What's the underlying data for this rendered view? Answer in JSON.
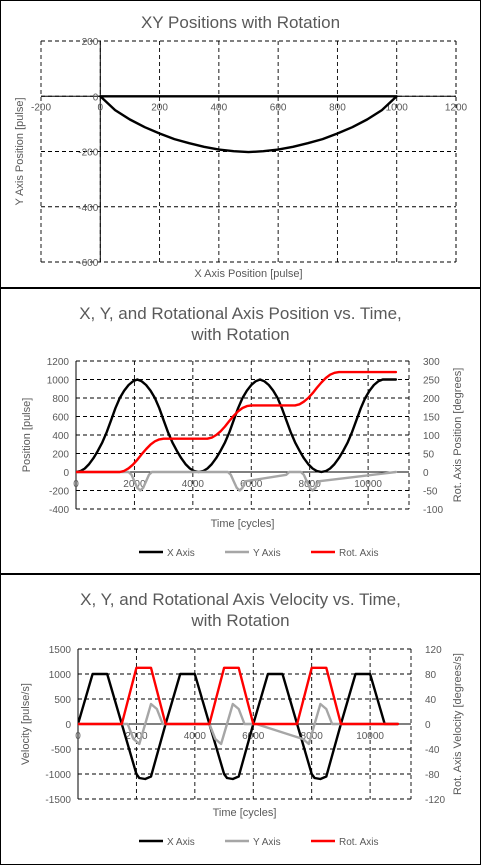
{
  "charts": [
    {
      "title_lines": [
        "XY Positions with Rotation"
      ],
      "xlabel": "X Axis Position [pulse]",
      "ylabel": "Y Axis Position [pulse]",
      "legend": []
    },
    {
      "title_lines": [
        "X, Y, and Rotational Axis Position vs. Time,",
        "with Rotation"
      ],
      "xlabel": "Time [cycles]",
      "ylabel": "Position [pulse]",
      "y2label": "Rot. Axis Position [degrees]",
      "legend": [
        "X Axis",
        "Y Axis",
        "Rot. Axis"
      ]
    },
    {
      "title_lines": [
        "X, Y, and Rotational Axis Velocity vs. Time,",
        "with Rotation"
      ],
      "xlabel": "Time [cycles]",
      "ylabel": "Velocity [pulse/s]",
      "y2label": "Rot. Axis Velocity [degrees/s]",
      "legend": [
        "X Axis",
        "Y Axis",
        "Rot. Axis"
      ]
    }
  ],
  "chart_data": [
    {
      "type": "line",
      "title": "XY Positions with Rotation",
      "xlabel": "X Axis Position [pulse]",
      "ylabel": "Y Axis Position [pulse]",
      "xlim": [
        -200,
        1200
      ],
      "ylim": [
        -600,
        200
      ],
      "xticks": [
        -200,
        0,
        200,
        400,
        600,
        800,
        1000,
        1200
      ],
      "yticks": [
        -600,
        -400,
        -200,
        0,
        200
      ],
      "grid": true,
      "series": [
        {
          "color": "#000000",
          "x": [
            0,
            50,
            100,
            150,
            200,
            250,
            300,
            350,
            400,
            450,
            500,
            550,
            600,
            650,
            700,
            750,
            800,
            850,
            900,
            950,
            1000,
            950,
            900,
            850,
            800,
            750,
            700,
            650,
            600,
            550,
            500,
            450,
            400,
            350,
            300,
            250,
            200,
            150,
            100,
            50,
            0
          ],
          "y": [
            0,
            -50,
            -84,
            -112,
            -135,
            -155,
            -170,
            -183,
            -193,
            -199,
            -202,
            -199,
            -193,
            -183,
            -170,
            -155,
            -135,
            -112,
            -84,
            -50,
            0,
            0,
            0,
            0,
            0,
            0,
            0,
            0,
            0,
            0,
            0,
            0,
            0,
            0,
            0,
            0,
            0,
            0,
            0,
            0,
            0
          ]
        }
      ]
    },
    {
      "type": "line",
      "title": "X, Y, and Rotational Axis Position vs. Time, with Rotation",
      "xlabel": "Time [cycles]",
      "ylabel": "Position [pulse]",
      "y2label": "Rot. Axis Position [degrees]",
      "xlim": [
        0,
        11400
      ],
      "ylim": [
        -400,
        1200
      ],
      "y2lim": [
        -100,
        300
      ],
      "xticks": [
        0,
        2000,
        4000,
        6000,
        8000,
        10000
      ],
      "yticks": [
        -400,
        -200,
        0,
        200,
        400,
        600,
        800,
        1000,
        1200
      ],
      "y2ticks": [
        -100,
        -50,
        0,
        50,
        100,
        150,
        200,
        250,
        300
      ],
      "grid": true,
      "legend_position": "bottom",
      "series": [
        {
          "name": "X Axis",
          "color": "#000000",
          "axis": "left",
          "x": [
            0,
            150,
            300,
            450,
            600,
            750,
            900,
            1050,
            1200,
            1350,
            1500,
            1650,
            1800,
            1950,
            2100,
            2250,
            2400,
            2550,
            2700,
            2850,
            3000,
            3150,
            3300,
            3450,
            3600,
            3750,
            3900,
            4050,
            4200,
            4350,
            4500,
            4650,
            4800,
            4950,
            5100,
            5250,
            5400,
            5550,
            5700,
            5850,
            6000,
            6150,
            6300,
            6450,
            6600,
            6750,
            6900,
            7050,
            7200,
            7350,
            7500,
            7650,
            7800,
            7950,
            8100,
            8250,
            8400,
            8550,
            8700,
            8850,
            9000,
            9150,
            9300,
            9450,
            9600,
            9750,
            9900,
            10050,
            10200,
            10350,
            10500,
            10650,
            10800,
            10950
          ],
          "y": [
            0,
            10,
            38,
            85,
            150,
            230,
            320,
            430,
            560,
            690,
            800,
            880,
            940,
            980,
            1000,
            980,
            940,
            880,
            800,
            690,
            560,
            430,
            320,
            230,
            150,
            85,
            38,
            10,
            0,
            10,
            38,
            85,
            150,
            230,
            320,
            430,
            560,
            690,
            800,
            880,
            940,
            980,
            1000,
            980,
            940,
            880,
            800,
            690,
            560,
            430,
            320,
            230,
            150,
            85,
            38,
            10,
            0,
            10,
            38,
            85,
            150,
            230,
            320,
            430,
            560,
            690,
            800,
            880,
            940,
            980,
            1000,
            1000,
            1000,
            1000
          ]
        },
        {
          "name": "Y Axis",
          "color": "#a6a6a6",
          "axis": "left",
          "x": [
            0,
            1800,
            1900,
            2000,
            2100,
            2200,
            2300,
            2400,
            2500,
            2600,
            2700,
            2800,
            4200,
            4300,
            4400,
            4500,
            4600,
            4700,
            4800,
            4900,
            5000,
            5100,
            5200,
            5300,
            5400,
            5500,
            5600,
            5700,
            5800,
            7200,
            7300,
            7400,
            7500,
            7600,
            7700,
            7800,
            7900,
            8000,
            8100,
            8200,
            8300,
            10950
          ],
          "y": [
            0,
            0,
            -30,
            -100,
            -170,
            -200,
            -170,
            -100,
            -30,
            0,
            0,
            0,
            0,
            0,
            0,
            0,
            0,
            0,
            0,
            0,
            0,
            0,
            0,
            -30,
            -100,
            -170,
            -200,
            -170,
            -100,
            -30,
            0,
            0,
            0,
            0,
            0,
            -30,
            -100,
            -170,
            -200,
            -170,
            -100,
            0
          ]
        },
        {
          "name": "Rot. Axis",
          "color": "#ff0000",
          "axis": "right",
          "x": [
            0,
            1500,
            1650,
            1800,
            1950,
            2100,
            2250,
            2400,
            2550,
            2700,
            2850,
            3000,
            4500,
            4650,
            4800,
            4950,
            5100,
            5250,
            5400,
            5550,
            5700,
            5850,
            6000,
            7500,
            7650,
            7800,
            7950,
            8100,
            8250,
            8400,
            8550,
            8700,
            8850,
            9000,
            10950
          ],
          "y": [
            0,
            0,
            3,
            10,
            20,
            33,
            48,
            62,
            74,
            83,
            88,
            90,
            90,
            93,
            100,
            110,
            123,
            138,
            152,
            164,
            173,
            178,
            180,
            180,
            183,
            190,
            200,
            213,
            228,
            242,
            254,
            263,
            268,
            270,
            270
          ]
        }
      ]
    },
    {
      "type": "line",
      "title": "X, Y, and Rotational Axis Velocity vs. Time, with Rotation",
      "xlabel": "Time [cycles]",
      "ylabel": "Velocity [pulse/s]",
      "y2label": "Rot. Axis Velocity [degrees/s]",
      "xlim": [
        0,
        11400
      ],
      "ylim": [
        -1500,
        1500
      ],
      "y2lim": [
        -120,
        120
      ],
      "xticks": [
        0,
        2000,
        4000,
        6000,
        8000,
        10000
      ],
      "yticks": [
        -1500,
        -1000,
        -500,
        0,
        500,
        1000,
        1500
      ],
      "y2ticks": [
        -120,
        -80,
        -40,
        0,
        40,
        80,
        120
      ],
      "grid": true,
      "legend_position": "bottom",
      "series": [
        {
          "name": "X Axis",
          "color": "#000000",
          "axis": "left",
          "x": [
            0,
            500,
            1000,
            1500,
            2000,
            2100,
            2300,
            2500,
            3000,
            3500,
            4000,
            4500,
            5000,
            5100,
            5300,
            5500,
            6000,
            6500,
            7000,
            7500,
            8000,
            8100,
            8300,
            8500,
            9000,
            9500,
            10000,
            10500,
            10950
          ],
          "y": [
            0,
            1000,
            1000,
            0,
            -1000,
            -1080,
            -1100,
            -1050,
            0,
            1000,
            1000,
            0,
            -1000,
            -1080,
            -1100,
            -1050,
            0,
            1000,
            1000,
            0,
            -1000,
            -1080,
            -1100,
            -1050,
            0,
            1000,
            1000,
            0,
            0
          ]
        },
        {
          "name": "Y Axis",
          "color": "#a6a6a6",
          "axis": "left",
          "x": [
            0,
            1700,
            1900,
            2100,
            2300,
            2500,
            2700,
            2900,
            3100,
            4500,
            4700,
            4900,
            5100,
            5300,
            5500,
            5700,
            5900,
            6100,
            7700,
            7900,
            8100,
            8300,
            8500,
            8700,
            8900,
            9100,
            10950
          ],
          "y": [
            0,
            0,
            -300,
            -400,
            0,
            400,
            300,
            0,
            0,
            0,
            -300,
            -400,
            0,
            400,
            300,
            0,
            0,
            0,
            -300,
            -400,
            0,
            400,
            300,
            0,
            0,
            0,
            0
          ]
        },
        {
          "name": "Rot. Axis",
          "color": "#ff0000",
          "axis": "right",
          "x": [
            0,
            1500,
            2000,
            2500,
            3000,
            4500,
            5000,
            5500,
            6000,
            7500,
            8000,
            8500,
            9000,
            10950
          ],
          "y": [
            0,
            0,
            90,
            90,
            0,
            0,
            90,
            90,
            0,
            0,
            90,
            90,
            0,
            0
          ]
        }
      ]
    }
  ]
}
